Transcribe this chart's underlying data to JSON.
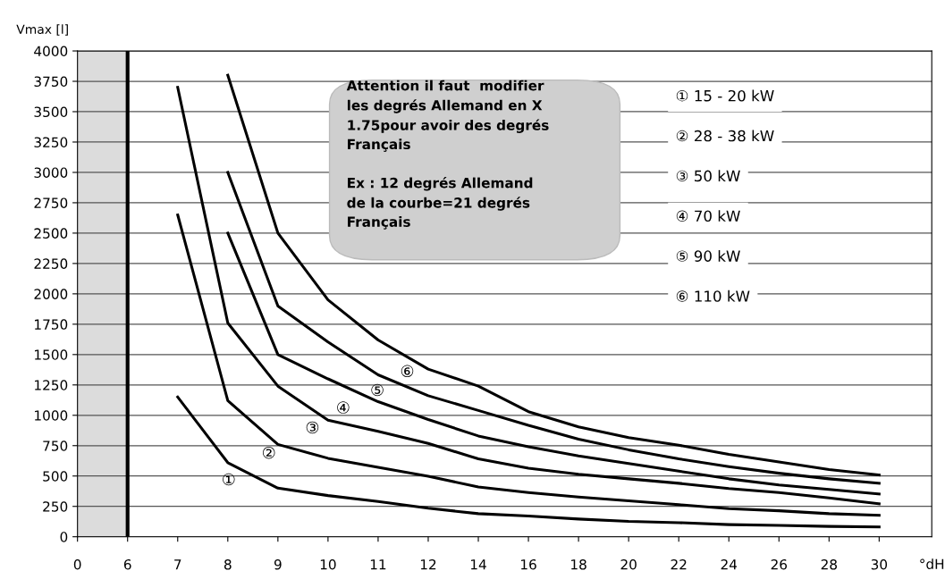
{
  "chart_data": {
    "type": "line",
    "xlabel": "°dH",
    "ylabel": "Vmax [l]",
    "categories": [
      "0",
      "6",
      "7",
      "8",
      "9",
      "10",
      "11",
      "12",
      "14",
      "16",
      "18",
      "20",
      "22",
      "24",
      "26",
      "28",
      "30"
    ],
    "ylim": [
      0,
      4000
    ],
    "yticks": [
      0,
      250,
      500,
      750,
      1000,
      1250,
      1500,
      1750,
      2000,
      2250,
      2500,
      2750,
      3000,
      3250,
      3500,
      3750,
      4000
    ],
    "grid": "y",
    "legend": false,
    "marker": "none",
    "line_style": "solid",
    "series": [
      {
        "color": "#000000",
        "values": [
          null,
          null,
          1150,
          610,
          400,
          339,
          290,
          235,
          190,
          171,
          146,
          126,
          116,
          100,
          93,
          85,
          80
        ]
      },
      {
        "color": "#000000",
        "values": [
          null,
          null,
          2650,
          1120,
          760,
          646,
          572,
          498,
          410,
          364,
          327,
          296,
          264,
          231,
          214,
          190,
          176
        ]
      },
      {
        "color": "#000000",
        "values": [
          null,
          null,
          3700,
          1760,
          1240,
          960,
          867,
          769,
          641,
          565,
          515,
          477,
          440,
          397,
          364,
          320,
          271
        ]
      },
      {
        "color": "#000000",
        "values": [
          null,
          null,
          null,
          2500,
          1500,
          1300,
          1112,
          965,
          830,
          741,
          666,
          603,
          540,
          477,
          427,
          389,
          352
        ]
      },
      {
        "color": "#000000",
        "values": [
          null,
          null,
          null,
          3000,
          1900,
          1603,
          1333,
          1161,
          1040,
          917,
          804,
          716,
          641,
          578,
          523,
          477,
          440
        ]
      },
      {
        "color": "#000000",
        "values": [
          null,
          null,
          null,
          3800,
          2500,
          1950,
          1620,
          1380,
          1240,
          1030,
          905,
          817,
          754,
          678,
          616,
          553,
          508
        ]
      }
    ],
    "ref_lines": [
      {
        "axis": "x",
        "value": "6",
        "color": "#000000",
        "line_style": "solid"
      }
    ],
    "bands": [
      {
        "axis": "x",
        "from": "0",
        "to": "6",
        "color": "#dcdcdc"
      }
    ],
    "annotations": [
      "Attention il faut  modifier\nles degrés Allemand en X\n1.75pour avoir des degrés\nFrançais\n\nEx : 12 degrés Allemand\nde la courbe=21 degrés\nFrançais",
      "① 15 - 20 kW",
      "② 28 - 38 kW",
      "③ 50 kW",
      "④ 70 kW",
      "⑤ 90 kW",
      "⑥ 110 kW",
      "①",
      "②",
      "③",
      "④",
      "⑤",
      "⑥"
    ]
  }
}
